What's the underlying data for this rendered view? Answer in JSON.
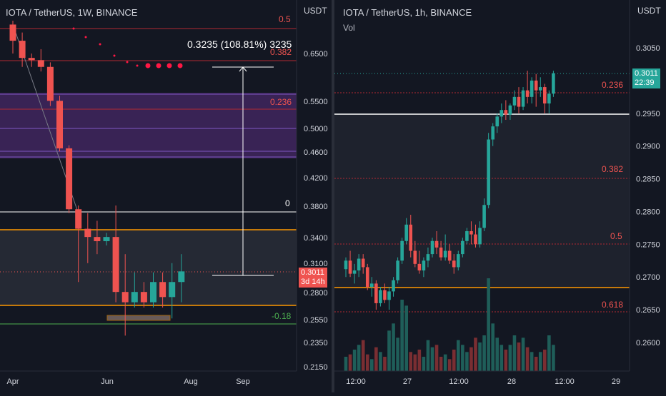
{
  "left": {
    "title": "IOTA / TetherUS, 1W, BINANCE",
    "currency": "USDT",
    "price_ticks": [
      "0.6500",
      "0.5500",
      "0.5000",
      "0.4600",
      "0.4200",
      "0.3800",
      "0.3400",
      "0.3100",
      "0.2800",
      "0.2550",
      "0.2350",
      "0.2150"
    ],
    "time_ticks": [
      "Apr",
      "Jun",
      "Aug",
      "Sep"
    ],
    "fib_labels": [
      "0.5",
      "0.382",
      "0.236",
      "0",
      "-0.18"
    ],
    "measure_label": "0.3235 (108.81%) 3235",
    "price_tag": {
      "price": "0.3011",
      "countdown": "3d 14h",
      "color": "#ef5350"
    },
    "candles": [
      [
        0.72,
        0.73,
        0.65,
        0.68
      ],
      [
        0.68,
        0.7,
        0.62,
        0.64
      ],
      [
        0.64,
        0.65,
        0.62,
        0.635
      ],
      [
        0.635,
        0.66,
        0.61,
        0.62
      ],
      [
        0.62,
        0.63,
        0.54,
        0.55
      ],
      [
        0.55,
        0.56,
        0.46,
        0.465
      ],
      [
        0.465,
        0.47,
        0.37,
        0.375
      ],
      [
        0.375,
        0.38,
        0.29,
        0.35
      ],
      [
        0.35,
        0.37,
        0.31,
        0.34
      ],
      [
        0.34,
        0.36,
        0.32,
        0.335
      ],
      [
        0.335,
        0.345,
        0.33,
        0.34
      ],
      [
        0.34,
        0.38,
        0.27,
        0.28
      ],
      [
        0.28,
        0.32,
        0.24,
        0.27
      ],
      [
        0.27,
        0.3,
        0.265,
        0.28
      ],
      [
        0.28,
        0.29,
        0.265,
        0.27
      ],
      [
        0.27,
        0.3,
        0.265,
        0.29
      ],
      [
        0.29,
        0.3,
        0.265,
        0.275
      ],
      [
        0.275,
        0.31,
        0.255,
        0.29
      ],
      [
        0.29,
        0.32,
        0.27,
        0.3011
      ]
    ]
  },
  "right": {
    "title": "IOTA / TetherUS, 1h, BINANCE",
    "vol_label": "Vol",
    "currency": "USDT",
    "price_ticks": [
      "0.3050",
      "0.3000",
      "0.2950",
      "0.2900",
      "0.2850",
      "0.2800",
      "0.2750",
      "0.2700",
      "0.2650",
      "0.2600"
    ],
    "time_ticks": [
      "12:00",
      "27",
      "12:00",
      "28",
      "12:00",
      "29"
    ],
    "fib_labels": [
      "0.236",
      "0.382",
      "0.5",
      "0.618"
    ],
    "price_tag": {
      "price": "0.3011",
      "countdown": "22:39",
      "color": "#26a69a"
    },
    "candles": [
      [
        0.2712,
        0.273,
        0.27,
        0.2725
      ],
      [
        0.2725,
        0.274,
        0.27,
        0.2705
      ],
      [
        0.2705,
        0.272,
        0.269,
        0.271
      ],
      [
        0.271,
        0.2735,
        0.27,
        0.2728
      ],
      [
        0.2728,
        0.2735,
        0.2705,
        0.2715
      ],
      [
        0.2715,
        0.272,
        0.268,
        0.2685
      ],
      [
        0.2685,
        0.27,
        0.267,
        0.269
      ],
      [
        0.269,
        0.2695,
        0.265,
        0.266
      ],
      [
        0.266,
        0.2685,
        0.2655,
        0.268
      ],
      [
        0.268,
        0.269,
        0.266,
        0.2665
      ],
      [
        0.2665,
        0.2685,
        0.265,
        0.2678
      ],
      [
        0.2678,
        0.27,
        0.267,
        0.2695
      ],
      [
        0.2695,
        0.273,
        0.269,
        0.2725
      ],
      [
        0.2725,
        0.276,
        0.272,
        0.2755
      ],
      [
        0.2755,
        0.279,
        0.275,
        0.278
      ],
      [
        0.278,
        0.2795,
        0.273,
        0.274
      ],
      [
        0.274,
        0.2755,
        0.2715,
        0.272
      ],
      [
        0.272,
        0.274,
        0.2705,
        0.271
      ],
      [
        0.271,
        0.273,
        0.27,
        0.2725
      ],
      [
        0.2725,
        0.2745,
        0.2715,
        0.2735
      ],
      [
        0.2735,
        0.276,
        0.273,
        0.2755
      ],
      [
        0.2755,
        0.277,
        0.2735,
        0.2745
      ],
      [
        0.2745,
        0.2755,
        0.2725,
        0.273
      ],
      [
        0.273,
        0.2765,
        0.2725,
        0.274
      ],
      [
        0.274,
        0.275,
        0.272,
        0.2725
      ],
      [
        0.2725,
        0.2735,
        0.2705,
        0.2715
      ],
      [
        0.2715,
        0.274,
        0.271,
        0.2735
      ],
      [
        0.2735,
        0.276,
        0.273,
        0.2755
      ],
      [
        0.2755,
        0.2775,
        0.275,
        0.277
      ],
      [
        0.277,
        0.2785,
        0.275,
        0.2765
      ],
      [
        0.2765,
        0.278,
        0.2745,
        0.275
      ],
      [
        0.275,
        0.2785,
        0.2745,
        0.2775
      ],
      [
        0.2775,
        0.282,
        0.277,
        0.281
      ],
      [
        0.281,
        0.292,
        0.2805,
        0.291
      ],
      [
        0.291,
        0.2935,
        0.29,
        0.293
      ],
      [
        0.293,
        0.295,
        0.292,
        0.2945
      ],
      [
        0.2945,
        0.2965,
        0.2935,
        0.2955
      ],
      [
        0.2955,
        0.297,
        0.294,
        0.2948
      ],
      [
        0.2948,
        0.2965,
        0.294,
        0.2962
      ],
      [
        0.2962,
        0.2985,
        0.2955,
        0.2975
      ],
      [
        0.2975,
        0.299,
        0.295,
        0.296
      ],
      [
        0.296,
        0.299,
        0.2955,
        0.2985
      ],
      [
        0.2985,
        0.3015,
        0.2965,
        0.2975
      ],
      [
        0.2975,
        0.3005,
        0.2965,
        0.3
      ],
      [
        0.3,
        0.301,
        0.296,
        0.2985
      ],
      [
        0.2985,
        0.3005,
        0.2975,
        0.299
      ],
      [
        0.299,
        0.2995,
        0.295,
        0.2965
      ],
      [
        0.2965,
        0.2985,
        0.295,
        0.298
      ],
      [
        0.298,
        0.3015,
        0.2975,
        0.3011
      ]
    ],
    "volume": [
      12,
      14,
      18,
      22,
      26,
      14,
      10,
      20,
      16,
      12,
      34,
      40,
      28,
      60,
      55,
      16,
      14,
      18,
      12,
      26,
      20,
      22,
      12,
      14,
      10,
      18,
      26,
      22,
      16,
      20,
      28,
      24,
      30,
      78,
      40,
      28,
      22,
      18,
      22,
      30,
      24,
      28,
      20,
      16,
      12,
      16,
      18,
      30,
      22
    ]
  }
}
